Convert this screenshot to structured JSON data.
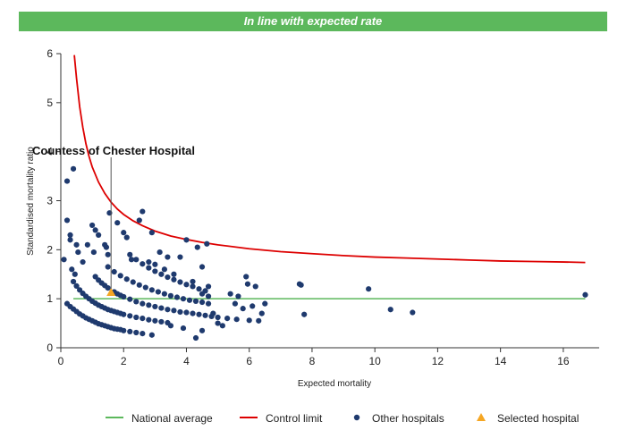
{
  "banner": {
    "text": "In line with expected rate",
    "color": "#5cb85c"
  },
  "chart_data": {
    "type": "scatter",
    "title": "In line with expected rate",
    "xlabel": "Expected mortality",
    "ylabel": "Standardised mortality ratio",
    "xlim": [
      0,
      17
    ],
    "ylim": [
      0,
      6
    ],
    "x_ticks": [
      0,
      2,
      4,
      6,
      8,
      10,
      12,
      14,
      16
    ],
    "y_ticks": [
      0,
      1,
      2,
      3,
      4,
      5,
      6
    ],
    "grid": false,
    "legend_position": "bottom",
    "annotation": {
      "text": "Countess of Chester Hospital",
      "x": 1.6,
      "y": 1.13
    },
    "national_average": {
      "name": "National average",
      "value": 1.0,
      "color": "#5cb85c"
    },
    "control_limit": {
      "name": "Control limit",
      "color": "#dd0000",
      "x": [
        0.43,
        0.5,
        0.6,
        0.7,
        0.8,
        0.9,
        1.0,
        1.2,
        1.4,
        1.6,
        1.8,
        2.0,
        2.3,
        2.6,
        3.0,
        3.5,
        4.0,
        4.5,
        5.0,
        6.0,
        7.0,
        8.0,
        9.0,
        10.0,
        11.0,
        12.0,
        13.0,
        14.0,
        15.0,
        16.0,
        16.7
      ],
      "y": [
        5.97,
        5.5,
        4.92,
        4.5,
        4.16,
        3.9,
        3.69,
        3.38,
        3.15,
        2.97,
        2.83,
        2.72,
        2.59,
        2.49,
        2.38,
        2.28,
        2.21,
        2.15,
        2.1,
        2.02,
        1.96,
        1.92,
        1.88,
        1.85,
        1.83,
        1.81,
        1.79,
        1.77,
        1.76,
        1.75,
        1.74
      ]
    },
    "series": [
      {
        "name": "Other hospitals",
        "color": "#1f3a6e",
        "points": [
          [
            0.1,
            1.8
          ],
          [
            0.2,
            3.4
          ],
          [
            0.2,
            2.6
          ],
          [
            0.3,
            2.3
          ],
          [
            0.3,
            2.2
          ],
          [
            0.35,
            1.6
          ],
          [
            0.4,
            3.65
          ],
          [
            0.45,
            1.5
          ],
          [
            0.5,
            2.1
          ],
          [
            0.55,
            1.95
          ],
          [
            0.7,
            1.75
          ],
          [
            0.85,
            2.1
          ],
          [
            1.0,
            2.5
          ],
          [
            1.05,
            1.95
          ],
          [
            1.1,
            2.4
          ],
          [
            1.2,
            2.3
          ],
          [
            1.4,
            2.1
          ],
          [
            1.45,
            2.05
          ],
          [
            1.5,
            1.9
          ],
          [
            1.55,
            2.75
          ],
          [
            1.8,
            2.55
          ],
          [
            2.0,
            2.35
          ],
          [
            2.1,
            2.25
          ],
          [
            2.25,
            1.8
          ],
          [
            2.5,
            2.6
          ],
          [
            2.6,
            2.78
          ],
          [
            2.9,
            2.35
          ],
          [
            3.15,
            1.95
          ],
          [
            3.4,
            1.85
          ],
          [
            3.8,
            1.85
          ],
          [
            4.0,
            2.2
          ],
          [
            4.35,
            2.05
          ],
          [
            4.5,
            1.65
          ],
          [
            4.65,
            2.12
          ],
          [
            4.7,
            1.25
          ],
          [
            4.85,
            0.7
          ],
          [
            5.15,
            0.45
          ],
          [
            5.4,
            1.1
          ],
          [
            5.55,
            0.9
          ],
          [
            5.65,
            1.05
          ],
          [
            5.8,
            0.8
          ],
          [
            5.9,
            1.45
          ],
          [
            5.95,
            1.3
          ],
          [
            6.1,
            0.85
          ],
          [
            6.2,
            1.25
          ],
          [
            6.3,
            0.55
          ],
          [
            6.4,
            0.7
          ],
          [
            6.5,
            0.9
          ],
          [
            7.6,
            1.3
          ],
          [
            7.65,
            1.28
          ],
          [
            7.75,
            0.68
          ],
          [
            9.8,
            1.2
          ],
          [
            10.5,
            0.78
          ],
          [
            11.2,
            0.72
          ],
          [
            16.7,
            1.08
          ],
          [
            0.2,
            0.9
          ],
          [
            0.3,
            0.84
          ],
          [
            0.4,
            0.79
          ],
          [
            0.5,
            0.74
          ],
          [
            0.6,
            0.69
          ],
          [
            0.7,
            0.65
          ],
          [
            0.8,
            0.61
          ],
          [
            0.9,
            0.58
          ],
          [
            1.0,
            0.55
          ],
          [
            1.1,
            0.52
          ],
          [
            1.2,
            0.49
          ],
          [
            1.3,
            0.47
          ],
          [
            1.4,
            0.45
          ],
          [
            1.5,
            0.43
          ],
          [
            1.6,
            0.41
          ],
          [
            1.7,
            0.39
          ],
          [
            1.8,
            0.38
          ],
          [
            1.9,
            0.37
          ],
          [
            2.0,
            0.35
          ],
          [
            2.2,
            0.33
          ],
          [
            2.4,
            0.31
          ],
          [
            2.6,
            0.29
          ],
          [
            2.9,
            0.26
          ],
          [
            0.4,
            1.35
          ],
          [
            0.5,
            1.26
          ],
          [
            0.6,
            1.18
          ],
          [
            0.7,
            1.11
          ],
          [
            0.8,
            1.05
          ],
          [
            0.9,
            1.0
          ],
          [
            1.0,
            0.95
          ],
          [
            1.1,
            0.91
          ],
          [
            1.2,
            0.87
          ],
          [
            1.3,
            0.84
          ],
          [
            1.4,
            0.81
          ],
          [
            1.5,
            0.78
          ],
          [
            1.6,
            0.76
          ],
          [
            1.7,
            0.74
          ],
          [
            1.8,
            0.72
          ],
          [
            1.9,
            0.7
          ],
          [
            2.0,
            0.68
          ],
          [
            2.2,
            0.65
          ],
          [
            2.4,
            0.62
          ],
          [
            2.6,
            0.6
          ],
          [
            2.8,
            0.57
          ],
          [
            3.0,
            0.55
          ],
          [
            3.2,
            0.53
          ],
          [
            3.4,
            0.51
          ],
          [
            1.1,
            1.45
          ],
          [
            1.2,
            1.38
          ],
          [
            1.3,
            1.32
          ],
          [
            1.4,
            1.27
          ],
          [
            1.5,
            1.22
          ],
          [
            1.7,
            1.14
          ],
          [
            1.8,
            1.1
          ],
          [
            1.9,
            1.07
          ],
          [
            2.0,
            1.04
          ],
          [
            2.2,
            0.99
          ],
          [
            2.4,
            0.94
          ],
          [
            2.6,
            0.9
          ],
          [
            2.8,
            0.87
          ],
          [
            3.0,
            0.84
          ],
          [
            3.2,
            0.81
          ],
          [
            3.4,
            0.78
          ],
          [
            3.6,
            0.76
          ],
          [
            3.8,
            0.73
          ],
          [
            4.0,
            0.72
          ],
          [
            4.2,
            0.7
          ],
          [
            4.4,
            0.68
          ],
          [
            4.6,
            0.66
          ],
          [
            4.8,
            0.64
          ],
          [
            5.0,
            0.62
          ],
          [
            5.3,
            0.6
          ],
          [
            5.6,
            0.58
          ],
          [
            6.0,
            0.56
          ],
          [
            1.5,
            1.65
          ],
          [
            1.7,
            1.55
          ],
          [
            1.9,
            1.47
          ],
          [
            2.1,
            1.4
          ],
          [
            2.3,
            1.34
          ],
          [
            2.5,
            1.28
          ],
          [
            2.7,
            1.23
          ],
          [
            2.9,
            1.18
          ],
          [
            3.1,
            1.14
          ],
          [
            3.3,
            1.1
          ],
          [
            3.5,
            1.06
          ],
          [
            3.7,
            1.03
          ],
          [
            3.9,
            1.0
          ],
          [
            4.1,
            0.97
          ],
          [
            4.3,
            0.95
          ],
          [
            4.5,
            0.93
          ],
          [
            4.7,
            0.9
          ],
          [
            2.2,
            1.9
          ],
          [
            2.4,
            1.8
          ],
          [
            2.6,
            1.71
          ],
          [
            2.8,
            1.63
          ],
          [
            3.0,
            1.56
          ],
          [
            3.2,
            1.5
          ],
          [
            3.4,
            1.44
          ],
          [
            3.6,
            1.39
          ],
          [
            3.8,
            1.34
          ],
          [
            4.0,
            1.29
          ],
          [
            4.2,
            1.25
          ],
          [
            4.4,
            1.2
          ],
          [
            4.6,
            1.16
          ],
          [
            2.8,
            1.75
          ],
          [
            3.0,
            1.7
          ],
          [
            3.3,
            1.6
          ],
          [
            3.6,
            1.5
          ],
          [
            4.2,
            1.35
          ],
          [
            4.5,
            1.1
          ],
          [
            4.7,
            1.05
          ],
          [
            3.5,
            0.45
          ],
          [
            3.9,
            0.4
          ],
          [
            4.3,
            0.2
          ],
          [
            4.5,
            0.35
          ],
          [
            5.0,
            0.5
          ]
        ]
      },
      {
        "name": "Selected hospital",
        "color": "#f5a623",
        "points": [
          [
            1.6,
            1.13
          ]
        ]
      }
    ]
  },
  "legend": {
    "items": [
      {
        "label": "National average",
        "kind": "line",
        "color": "#5cb85c"
      },
      {
        "label": "Control limit",
        "kind": "line",
        "color": "#dd0000"
      },
      {
        "label": "Other hospitals",
        "kind": "dot",
        "color": "#1f3a6e"
      },
      {
        "label": "Selected hospital",
        "kind": "triangle",
        "color": "#f5a623"
      }
    ]
  }
}
